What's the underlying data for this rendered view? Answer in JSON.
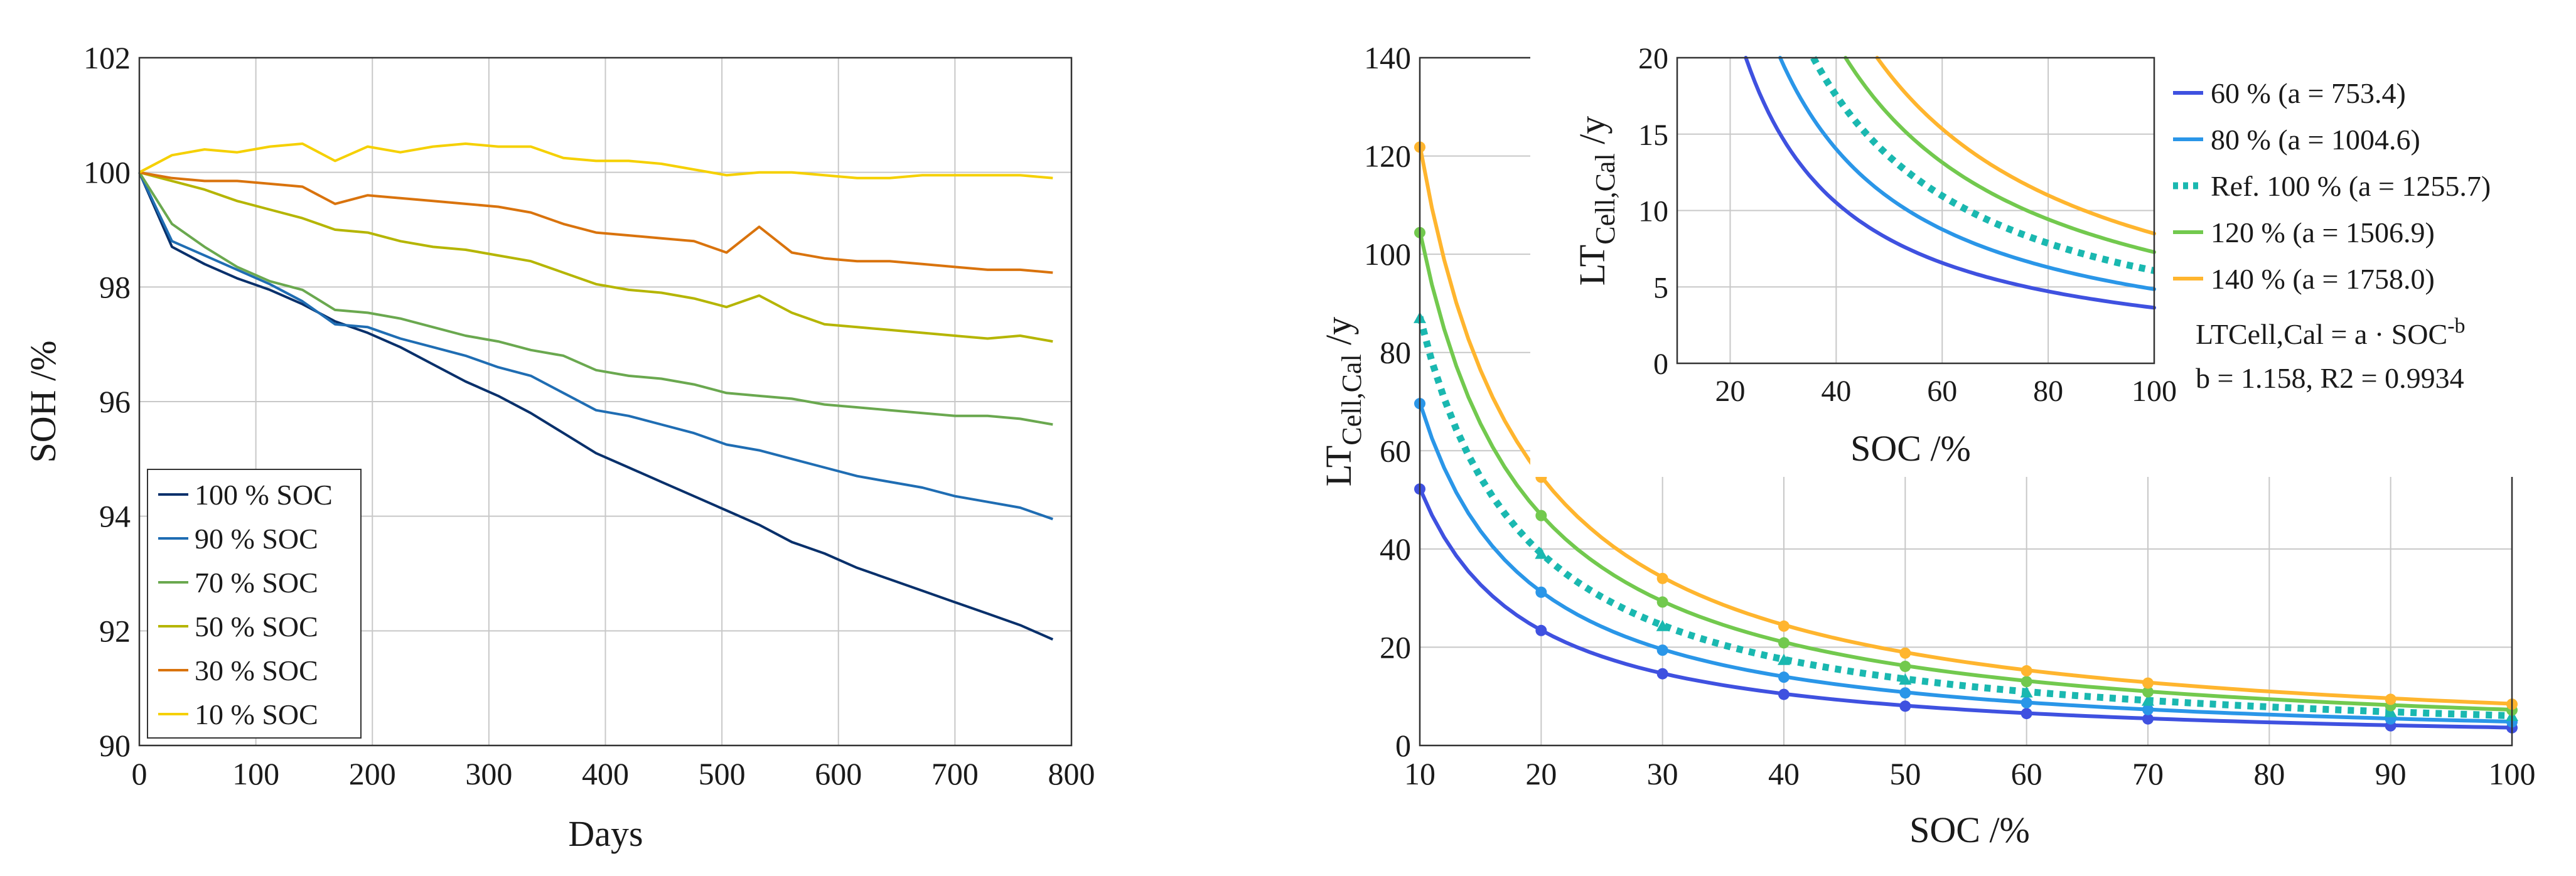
{
  "chart_data": [
    {
      "type": "line",
      "id": "left",
      "xlabel": "Days",
      "ylabel": "SOH /%",
      "xlim": [
        0,
        800
      ],
      "ylim": [
        90,
        102
      ],
      "xticks": [
        0,
        100,
        200,
        300,
        400,
        500,
        600,
        700,
        800
      ],
      "yticks": [
        90,
        92,
        94,
        96,
        98,
        100,
        102
      ],
      "grid": true,
      "legend_position": "bottom-left",
      "series": [
        {
          "name": "100 % SOC",
          "color": "#08306b",
          "x": [
            0,
            28,
            56,
            84,
            112,
            140,
            168,
            196,
            224,
            252,
            280,
            308,
            336,
            364,
            392,
            420,
            448,
            476,
            504,
            532,
            560,
            588,
            616,
            644,
            672,
            700,
            728,
            756,
            784
          ],
          "y": [
            100,
            98.7,
            98.4,
            98.15,
            97.95,
            97.7,
            97.4,
            97.2,
            96.95,
            96.65,
            96.35,
            96.1,
            95.8,
            95.45,
            95.1,
            94.85,
            94.6,
            94.35,
            94.1,
            93.85,
            93.55,
            93.35,
            93.1,
            92.9,
            92.7,
            92.5,
            92.3,
            92.1,
            91.85
          ]
        },
        {
          "name": "90 % SOC",
          "color": "#1f6db3",
          "x": [
            0,
            28,
            56,
            84,
            112,
            140,
            168,
            196,
            224,
            252,
            280,
            308,
            336,
            364,
            392,
            420,
            448,
            476,
            504,
            532,
            560,
            588,
            616,
            644,
            672,
            700,
            728,
            756,
            784
          ],
          "y": [
            100,
            98.8,
            98.55,
            98.3,
            98.05,
            97.75,
            97.35,
            97.3,
            97.1,
            96.95,
            96.8,
            96.6,
            96.45,
            96.15,
            95.85,
            95.75,
            95.6,
            95.45,
            95.25,
            95.15,
            95.0,
            94.85,
            94.7,
            94.6,
            94.5,
            94.35,
            94.25,
            94.15,
            93.95
          ]
        },
        {
          "name": "70 % SOC",
          "color": "#6aa84f",
          "x": [
            0,
            28,
            56,
            84,
            112,
            140,
            168,
            196,
            224,
            252,
            280,
            308,
            336,
            364,
            392,
            420,
            448,
            476,
            504,
            532,
            560,
            588,
            616,
            644,
            672,
            700,
            728,
            756,
            784
          ],
          "y": [
            100,
            99.1,
            98.7,
            98.35,
            98.1,
            97.95,
            97.6,
            97.55,
            97.45,
            97.3,
            97.15,
            97.05,
            96.9,
            96.8,
            96.55,
            96.45,
            96.4,
            96.3,
            96.15,
            96.1,
            96.05,
            95.95,
            95.9,
            95.85,
            95.8,
            95.75,
            95.75,
            95.7,
            95.6
          ]
        },
        {
          "name": "50 % SOC",
          "color": "#b5b500",
          "x": [
            0,
            28,
            56,
            84,
            112,
            140,
            168,
            196,
            224,
            252,
            280,
            308,
            336,
            364,
            392,
            420,
            448,
            476,
            504,
            532,
            560,
            588,
            616,
            644,
            672,
            700,
            728,
            756,
            784
          ],
          "y": [
            100,
            99.85,
            99.7,
            99.5,
            99.35,
            99.2,
            99.0,
            98.95,
            98.8,
            98.7,
            98.65,
            98.55,
            98.45,
            98.25,
            98.05,
            97.95,
            97.9,
            97.8,
            97.65,
            97.85,
            97.55,
            97.35,
            97.3,
            97.25,
            97.2,
            97.15,
            97.1,
            97.15,
            97.05
          ]
        },
        {
          "name": "30 % SOC",
          "color": "#d9730d",
          "x": [
            0,
            28,
            56,
            84,
            112,
            140,
            168,
            196,
            224,
            252,
            280,
            308,
            336,
            364,
            392,
            420,
            448,
            476,
            504,
            532,
            560,
            588,
            616,
            644,
            672,
            700,
            728,
            756,
            784
          ],
          "y": [
            100,
            99.9,
            99.85,
            99.85,
            99.8,
            99.75,
            99.45,
            99.6,
            99.55,
            99.5,
            99.45,
            99.4,
            99.3,
            99.1,
            98.95,
            98.9,
            98.85,
            98.8,
            98.6,
            99.05,
            98.6,
            98.5,
            98.45,
            98.45,
            98.4,
            98.35,
            98.3,
            98.3,
            98.25
          ]
        },
        {
          "name": "10 % SOC",
          "color": "#f5d000",
          "x": [
            0,
            28,
            56,
            84,
            112,
            140,
            168,
            196,
            224,
            252,
            280,
            308,
            336,
            364,
            392,
            420,
            448,
            476,
            504,
            532,
            560,
            588,
            616,
            644,
            672,
            700,
            728,
            756,
            784
          ],
          "y": [
            100,
            100.3,
            100.4,
            100.35,
            100.45,
            100.5,
            100.2,
            100.45,
            100.35,
            100.45,
            100.5,
            100.45,
            100.45,
            100.25,
            100.2,
            100.2,
            100.15,
            100.05,
            99.95,
            100.0,
            100.0,
            99.95,
            99.9,
            99.9,
            99.95,
            99.95,
            99.95,
            99.95,
            99.9
          ]
        }
      ]
    },
    {
      "type": "line",
      "id": "right-main",
      "xlabel": "SOC /%",
      "ylabel_main": "LT",
      "ylabel_sub": "Cell,Cal",
      "ylabel_suffix": " /y",
      "xlim": [
        10,
        100
      ],
      "ylim": [
        0,
        140
      ],
      "xticks": [
        10,
        20,
        30,
        40,
        50,
        60,
        70,
        80,
        90,
        100
      ],
      "yticks": [
        0,
        20,
        40,
        60,
        80,
        100,
        120,
        140
      ],
      "grid": true,
      "marker_x": [
        10,
        20,
        30,
        40,
        50,
        60,
        70,
        90,
        100
      ],
      "series": [
        {
          "name": "60 % (a = 753.4)",
          "a": 753.4,
          "color": "#3f51e0",
          "style": "solid",
          "marker": "circle",
          "values": [
            52.2,
            23.4,
            14.6,
            10.4,
            8.0,
            6.5,
            5.4,
            4.0,
            3.6
          ]
        },
        {
          "name": "80 % (a = 1004.6)",
          "a": 1004.6,
          "color": "#2a96e8",
          "style": "solid",
          "marker": "circle",
          "values": [
            69.6,
            31.2,
            19.4,
            13.9,
            10.7,
            8.7,
            7.3,
            5.4,
            4.8
          ]
        },
        {
          "name": "Ref. 100 % (a = 1255.7)",
          "a": 1255.7,
          "color": "#1ab8b0",
          "style": "dotted",
          "marker": "triangle",
          "values": [
            87.0,
            39.0,
            24.3,
            17.4,
            13.4,
            10.8,
            9.1,
            6.8,
            6.0
          ]
        },
        {
          "name": "120 % (a = 1506.9)",
          "a": 1506.9,
          "color": "#72c94e",
          "style": "solid",
          "marker": "circle",
          "values": [
            104.4,
            46.8,
            29.2,
            20.9,
            16.1,
            13.0,
            10.9,
            8.1,
            7.2
          ]
        },
        {
          "name": "140 % (a = 1758.0)",
          "a": 1758.0,
          "color": "#ffb52e",
          "style": "solid",
          "marker": "circle",
          "values": [
            121.8,
            54.6,
            34.0,
            24.3,
            18.8,
            15.2,
            12.7,
            9.4,
            8.4
          ]
        }
      ],
      "formula_lines": [
        "LTCell,Cal = a · SOC",
        "-b",
        "b = 1.158, R2 = 0.9934"
      ]
    },
    {
      "type": "line",
      "id": "right-inset",
      "xlabel": "SOC /%",
      "ylabel_main": "LT",
      "ylabel_sub": "Cell,Cal",
      "ylabel_suffix": " /y",
      "xlim": [
        10,
        100
      ],
      "ylim": [
        0,
        20
      ],
      "xticks": [
        20,
        40,
        60,
        80,
        100
      ],
      "yticks": [
        0,
        5,
        10,
        15,
        20
      ],
      "grid": true,
      "exponent_b": 1.158
    }
  ]
}
